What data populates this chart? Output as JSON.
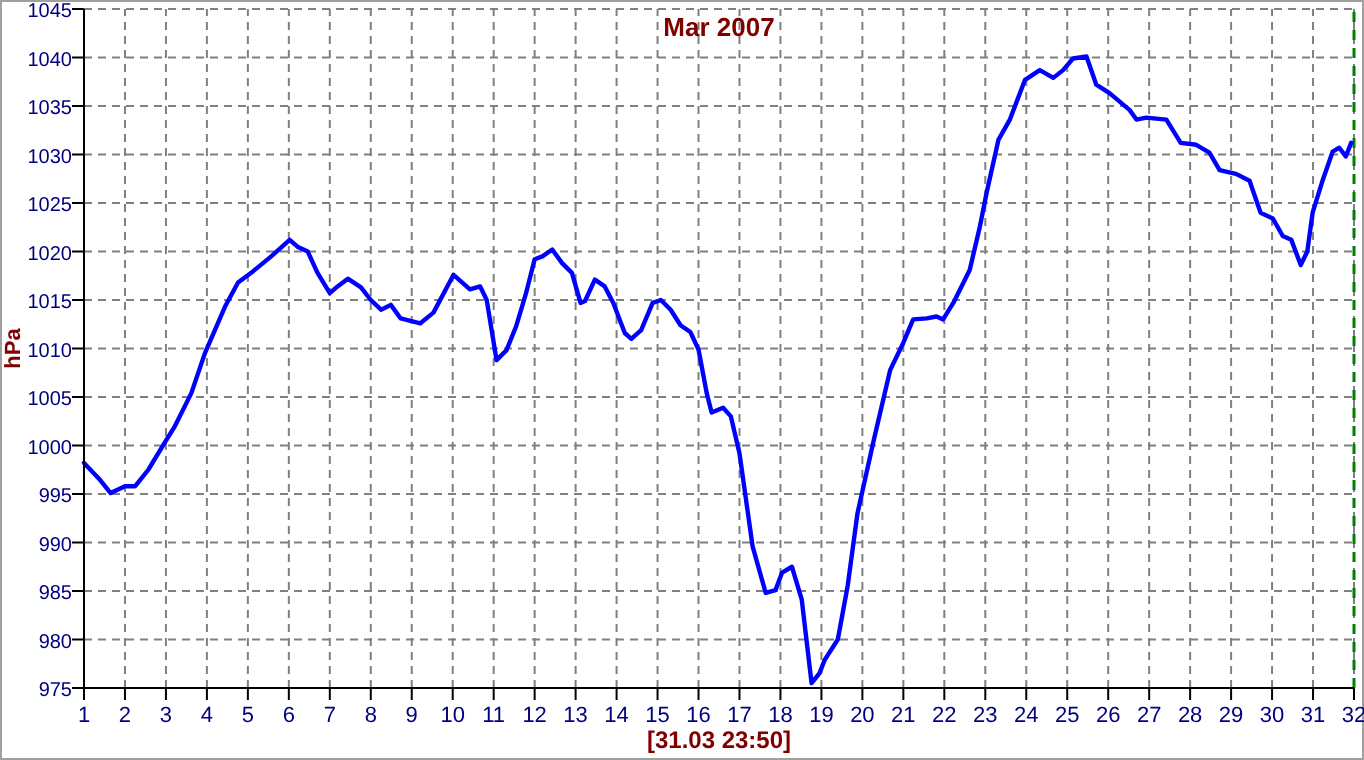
{
  "chart_data": {
    "type": "line",
    "title": "Mar 2007",
    "xlabel": "[31.03 23:50]",
    "ylabel": "hPa",
    "xlim": [
      1,
      32
    ],
    "xticks": [
      1,
      2,
      3,
      4,
      5,
      6,
      7,
      8,
      9,
      10,
      11,
      12,
      13,
      14,
      15,
      16,
      17,
      18,
      19,
      20,
      21,
      22,
      23,
      24,
      25,
      26,
      27,
      28,
      29,
      30,
      31,
      32
    ],
    "ylim": [
      975,
      1045
    ],
    "yticks": [
      975,
      980,
      985,
      990,
      995,
      1000,
      1005,
      1010,
      1015,
      1020,
      1025,
      1030,
      1035,
      1040,
      1045
    ],
    "grid": true,
    "line_style": "solid",
    "marker": "none",
    "ref_lines": [
      {
        "axis": "x",
        "value": 32,
        "color": "#008000",
        "line_style": "dashed"
      }
    ],
    "series": [
      {
        "color": "#0000ff",
        "x": [
          1.0,
          1.36,
          1.65,
          2.0,
          2.25,
          2.57,
          2.97,
          3.22,
          3.62,
          3.95,
          4.44,
          4.76,
          5.08,
          5.57,
          6.02,
          6.21,
          6.46,
          6.7,
          7.0,
          7.19,
          7.44,
          7.76,
          8.0,
          8.25,
          8.49,
          8.73,
          9.21,
          9.53,
          10.02,
          10.42,
          10.67,
          10.83,
          11.07,
          11.31,
          11.55,
          11.79,
          12.0,
          12.19,
          12.43,
          12.67,
          12.91,
          13.12,
          13.23,
          13.47,
          13.71,
          13.92,
          14.2,
          14.36,
          14.6,
          14.88,
          15.08,
          15.32,
          15.56,
          15.8,
          16.0,
          16.2,
          16.32,
          16.6,
          16.79,
          17.0,
          17.32,
          17.64,
          17.88,
          18.04,
          18.28,
          18.52,
          18.76,
          18.95,
          19.08,
          19.4,
          19.64,
          19.88,
          20.28,
          20.68,
          21.0,
          21.24,
          21.57,
          21.81,
          21.97,
          22.22,
          22.62,
          22.87,
          23.03,
          23.32,
          23.6,
          23.97,
          24.33,
          24.66,
          24.9,
          25.14,
          25.47,
          25.71,
          26.04,
          26.52,
          26.69,
          26.93,
          27.42,
          27.77,
          28.15,
          28.47,
          28.72,
          29.12,
          29.45,
          29.72,
          30.02,
          30.26,
          30.47,
          30.7,
          30.86,
          30.99,
          31.24,
          31.48,
          31.64,
          31.8,
          31.93
        ],
        "values": [
          998.2,
          996.6,
          995.1,
          995.8,
          995.8,
          997.5,
          1000.3,
          1002,
          1005.4,
          1009.5,
          1014.3,
          1016.8,
          1017.8,
          1019.5,
          1021.2,
          1020.5,
          1020,
          1017.8,
          1015.7,
          1016.4,
          1017.2,
          1016.3,
          1015,
          1014,
          1014.5,
          1013.1,
          1012.6,
          1013.7,
          1017.6,
          1016.1,
          1016.4,
          1015,
          1008.8,
          1009.8,
          1012.3,
          1015.7,
          1019.2,
          1019.5,
          1020.2,
          1018.8,
          1017.8,
          1014.7,
          1014.9,
          1017.1,
          1016.4,
          1014.7,
          1011.6,
          1011,
          1011.9,
          1014.7,
          1015,
          1014,
          1012.4,
          1011.7,
          1009.9,
          1005.4,
          1003.4,
          1003.9,
          1003,
          999.2,
          989.6,
          984.8,
          985.1,
          986.9,
          987.5,
          984.1,
          975.5,
          976.5,
          977.9,
          980,
          985.5,
          993,
          1000.6,
          1007.8,
          1010.6,
          1013,
          1013.1,
          1013.3,
          1013,
          1014.7,
          1018.1,
          1022.6,
          1026,
          1031.5,
          1033.6,
          1037.7,
          1038.7,
          1037.9,
          1038.7,
          1039.9,
          1040.1,
          1037.2,
          1036.3,
          1034.6,
          1033.6,
          1033.8,
          1033.6,
          1031.2,
          1031,
          1030.2,
          1028.4,
          1028,
          1027.3,
          1024,
          1023.4,
          1021.6,
          1021.2,
          1018.6,
          1020,
          1024,
          1027.4,
          1030.3,
          1030.7,
          1029.8,
          1031.2
        ]
      }
    ]
  }
}
